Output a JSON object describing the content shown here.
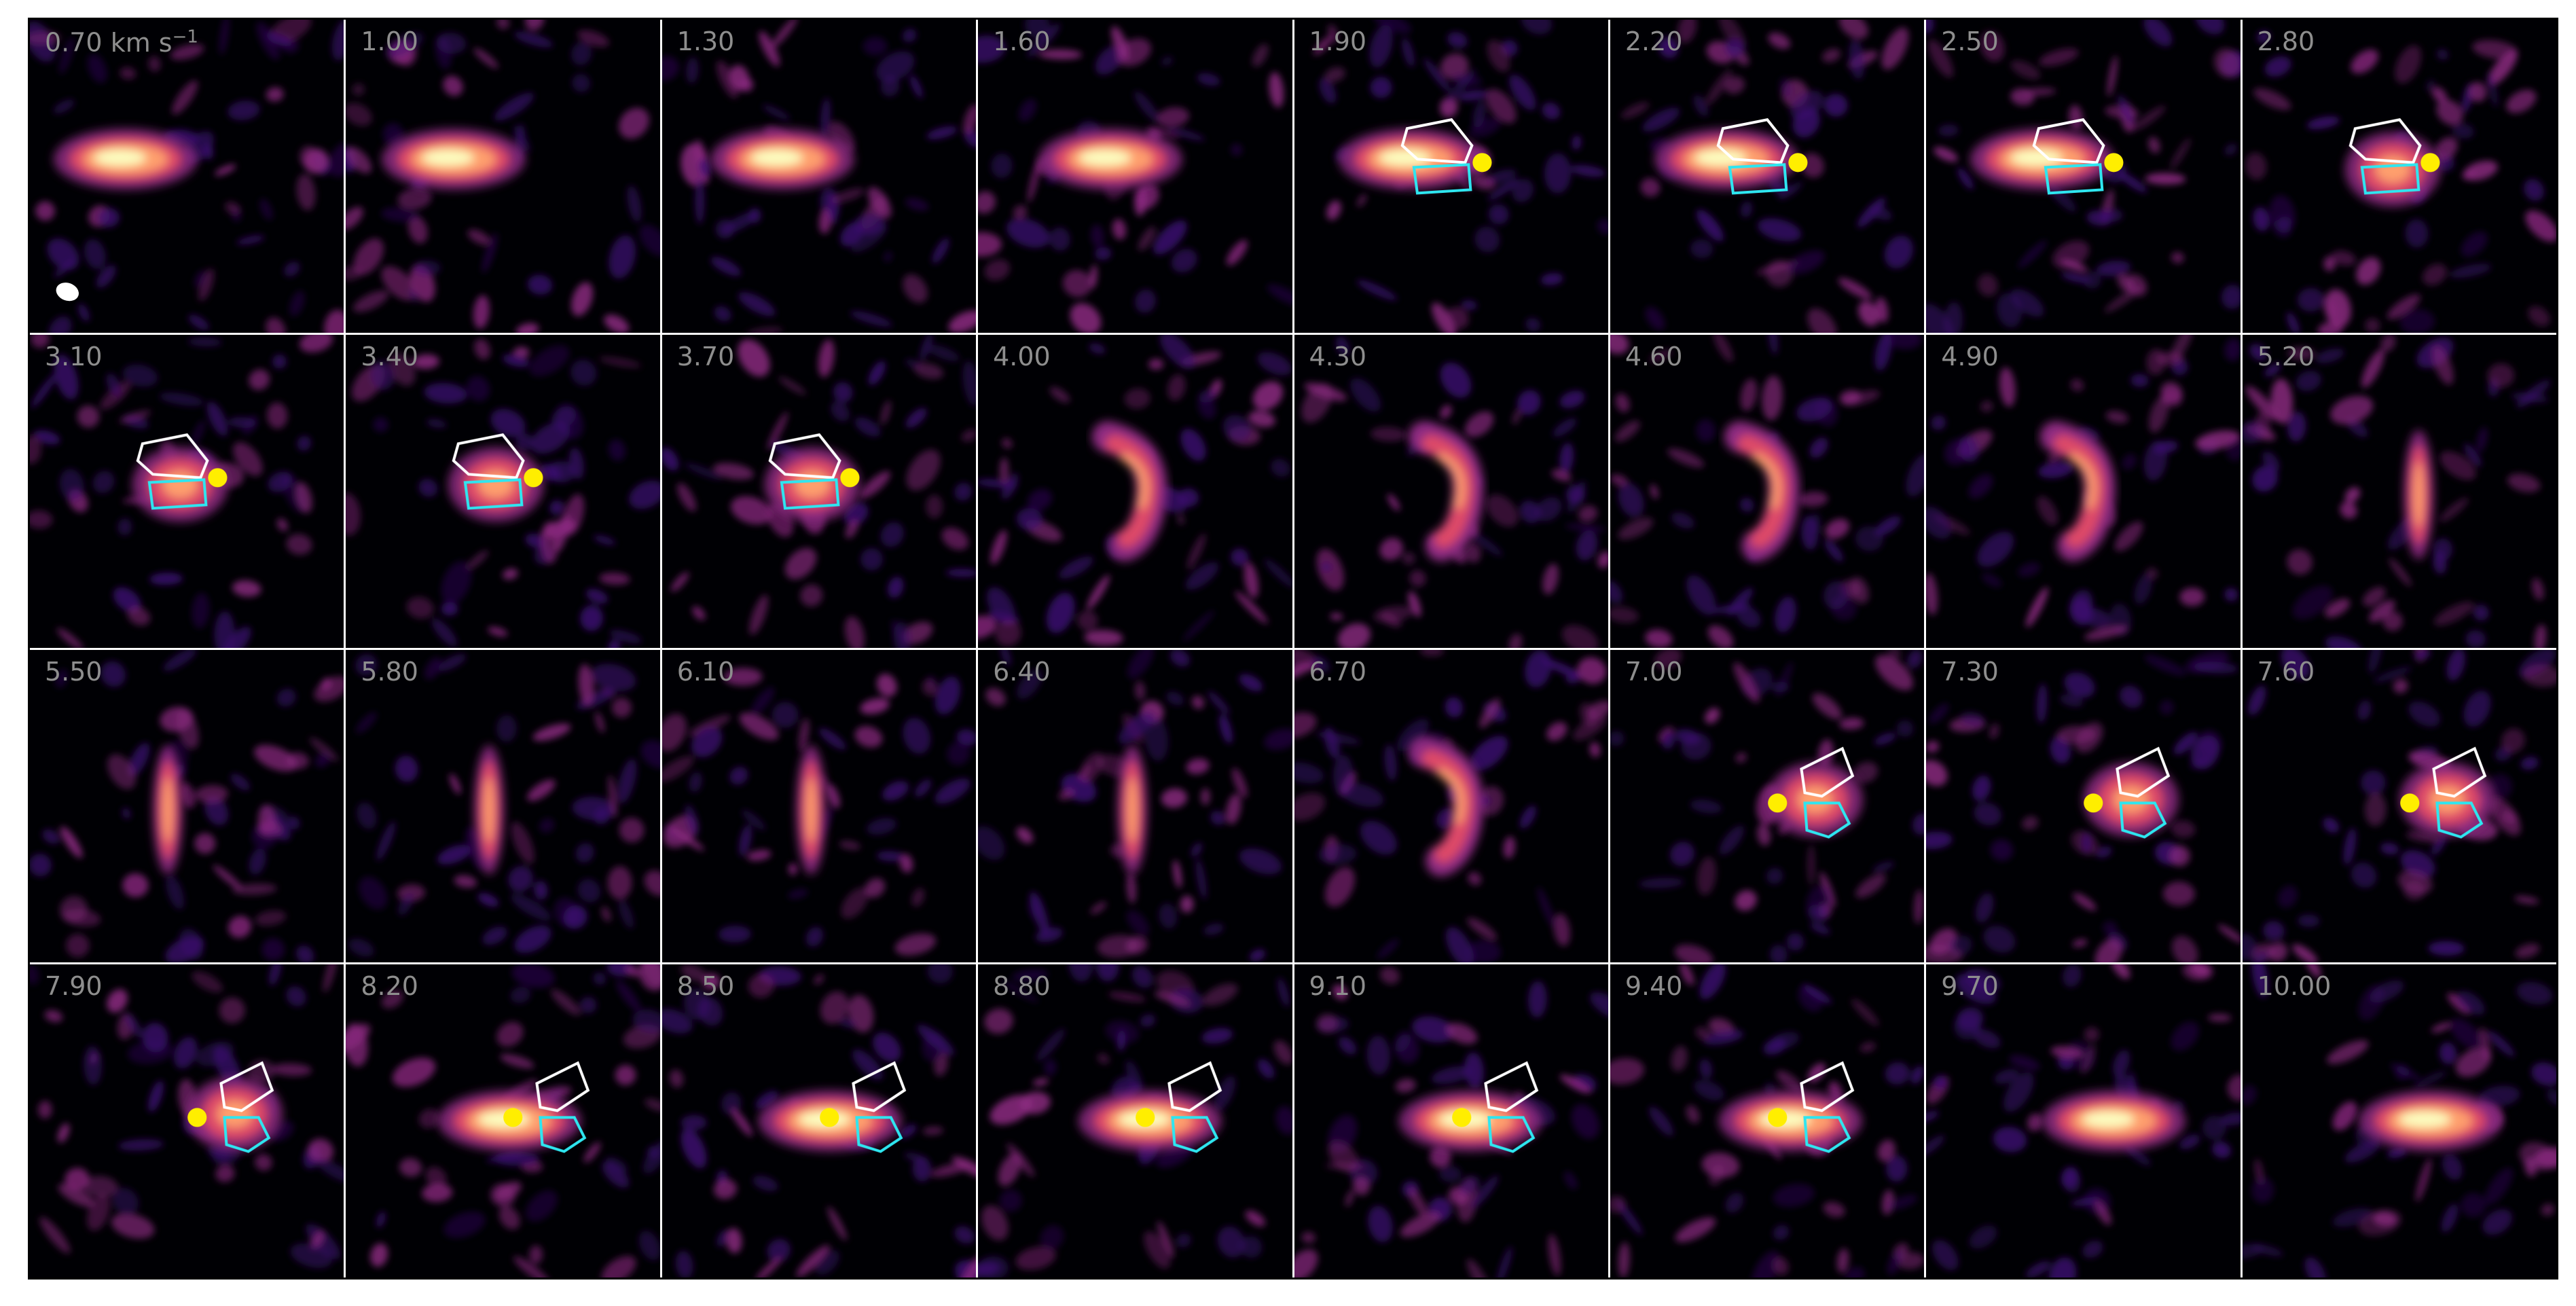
{
  "figure": {
    "first_unit": "km s",
    "first_unit_exponent": "−1",
    "label_color": "#8e8e8e",
    "colormap": [
      "#000004",
      "#3b0f70",
      "#8c2981",
      "#de4968",
      "#fe9f6d",
      "#fcfdbf"
    ],
    "markers": {
      "star_color": "#ffee00",
      "redshifted_region_color": "#ffffff",
      "blueshifted_region_color": "#2ee6f0",
      "beam_color": "#ffffff"
    }
  },
  "panels": [
    {
      "label": "0.70",
      "emission": "disk_wide",
      "overlay": "none",
      "beam": true
    },
    {
      "label": "1.00",
      "emission": "disk_wide",
      "overlay": "none"
    },
    {
      "label": "1.30",
      "emission": "disk_wide",
      "overlay": "none"
    },
    {
      "label": "1.60",
      "emission": "disk_wide",
      "overlay": "none"
    },
    {
      "label": "1.90",
      "emission": "disk_wide",
      "overlay": "star_right"
    },
    {
      "label": "2.20",
      "emission": "disk_wide",
      "overlay": "star_right"
    },
    {
      "label": "2.50",
      "emission": "disk_wide",
      "overlay": "star_right"
    },
    {
      "label": "2.80",
      "emission": "disk_mid",
      "overlay": "star_right"
    },
    {
      "label": "3.10",
      "emission": "disk_mid",
      "overlay": "star_right"
    },
    {
      "label": "3.40",
      "emission": "disk_mid",
      "overlay": "star_right"
    },
    {
      "label": "3.70",
      "emission": "disk_mid",
      "overlay": "star_right"
    },
    {
      "label": "4.00",
      "emission": "arc",
      "overlay": "none"
    },
    {
      "label": "4.30",
      "emission": "arc",
      "overlay": "none"
    },
    {
      "label": "4.60",
      "emission": "arc",
      "overlay": "none"
    },
    {
      "label": "4.90",
      "emission": "arc",
      "overlay": "none"
    },
    {
      "label": "5.20",
      "emission": "bar",
      "overlay": "none"
    },
    {
      "label": "5.50",
      "emission": "bar",
      "overlay": "none"
    },
    {
      "label": "5.80",
      "emission": "bar",
      "overlay": "none"
    },
    {
      "label": "6.10",
      "emission": "bar",
      "overlay": "none"
    },
    {
      "label": "6.40",
      "emission": "bar",
      "overlay": "none"
    },
    {
      "label": "6.70",
      "emission": "arc",
      "overlay": "none"
    },
    {
      "label": "7.00",
      "emission": "disk_mid",
      "overlay": "star_left"
    },
    {
      "label": "7.30",
      "emission": "disk_mid",
      "overlay": "star_left"
    },
    {
      "label": "7.60",
      "emission": "disk_mid",
      "overlay": "star_left"
    },
    {
      "label": "7.90",
      "emission": "disk_mid",
      "overlay": "star_left"
    },
    {
      "label": "8.20",
      "emission": "disk_wide",
      "overlay": "star_left"
    },
    {
      "label": "8.50",
      "emission": "disk_wide",
      "overlay": "star_left"
    },
    {
      "label": "8.80",
      "emission": "disk_wide",
      "overlay": "star_left"
    },
    {
      "label": "9.10",
      "emission": "disk_wide",
      "overlay": "star_left"
    },
    {
      "label": "9.40",
      "emission": "disk_wide",
      "overlay": "star_left"
    },
    {
      "label": "9.70",
      "emission": "disk_wide",
      "overlay": "none"
    },
    {
      "label": "10.00",
      "emission": "disk_wide",
      "overlay": "none"
    }
  ]
}
